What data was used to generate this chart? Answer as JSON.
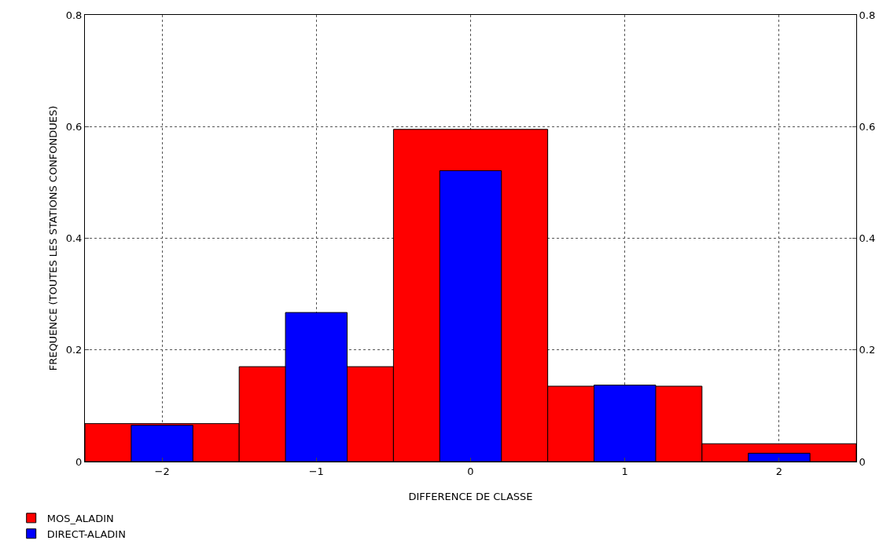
{
  "chart_data": {
    "type": "bar",
    "xlabel": "DIFFERENCE DE CLASSE",
    "ylabel": "FREQUENCE (TOUTES LES STATIONS CONFONDUES)",
    "categories": [
      "−2",
      "−1",
      "0",
      "1",
      "2"
    ],
    "series": [
      {
        "name": "MOS_ALADIN",
        "color": "#ff0000",
        "values": [
          0.068,
          0.17,
          0.595,
          0.135,
          0.032
        ]
      },
      {
        "name": "DIRECT-ALADIN",
        "color": "#0000ff",
        "values": [
          0.065,
          0.267,
          0.521,
          0.137,
          0.015
        ]
      }
    ],
    "ylim": [
      0,
      0.8
    ],
    "yticks": [
      0,
      0.2,
      0.4,
      0.6,
      0.8
    ],
    "y2lim": [
      0,
      0.8
    ],
    "y2ticks": [
      0,
      0.2,
      0.4,
      0.6,
      0.8
    ],
    "grid": true,
    "legend": "bottom left"
  }
}
